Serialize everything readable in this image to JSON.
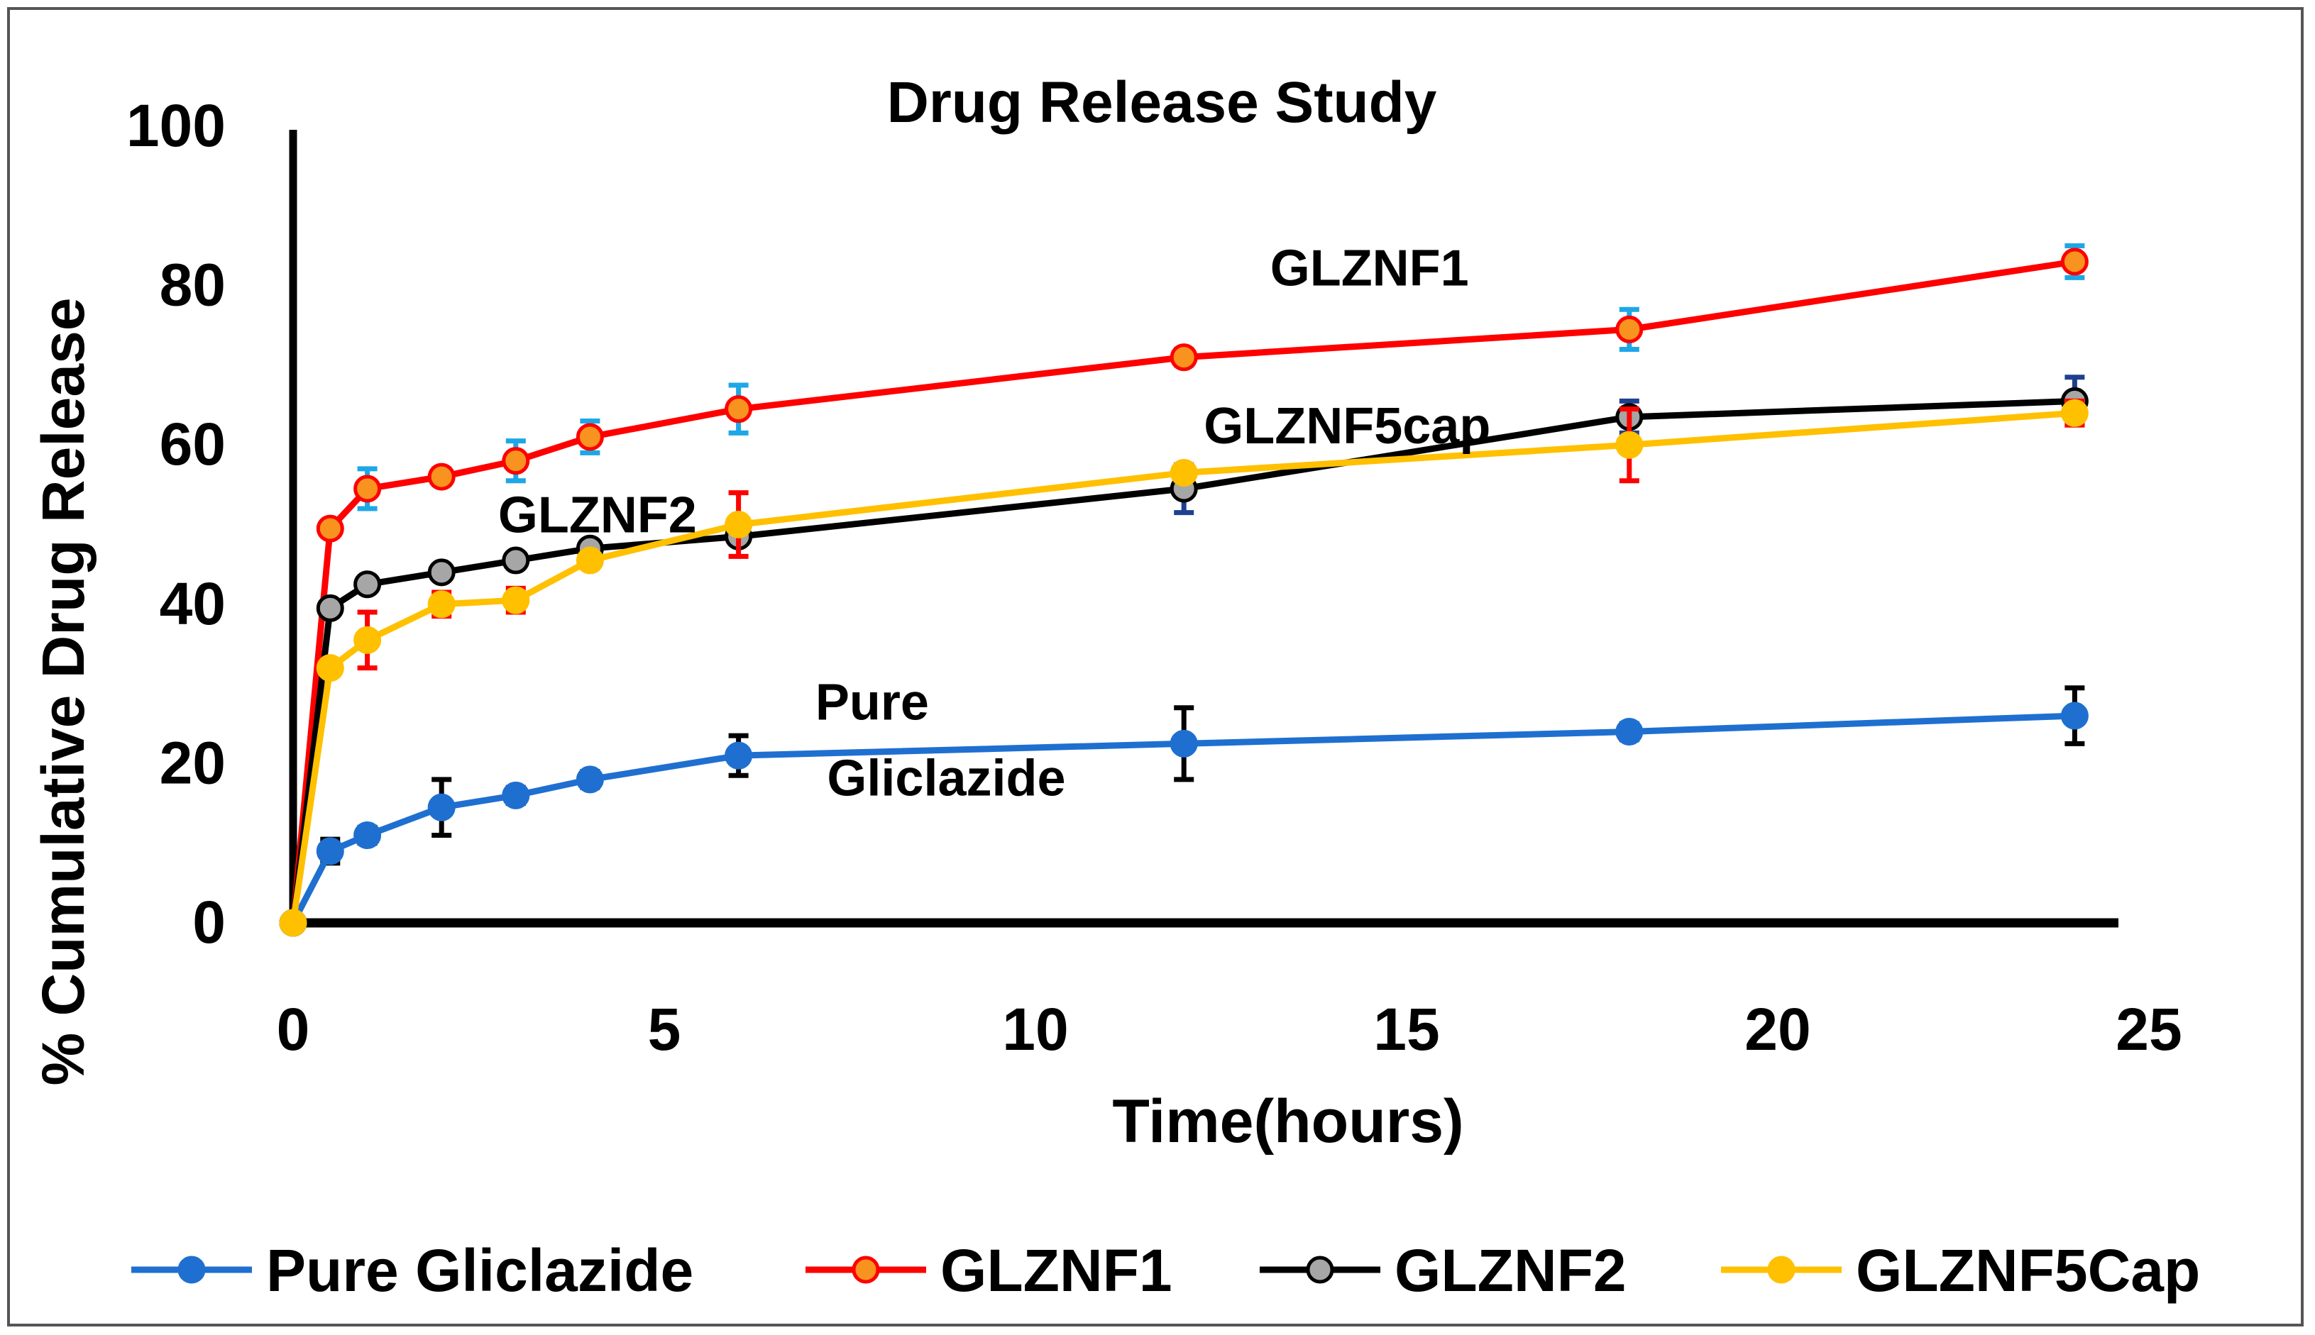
{
  "chart_data": {
    "type": "line",
    "title": "Drug Release Study",
    "xlabel": "Time(hours)",
    "ylabel": "% Cumulative Drug Release",
    "xlim": [
      0,
      25
    ],
    "ylim": [
      0,
      100
    ],
    "xticks": [
      0,
      5,
      10,
      15,
      20,
      25
    ],
    "yticks": [
      0,
      20,
      40,
      60,
      80,
      100
    ],
    "grid": false,
    "legend": "bottom",
    "series": [
      {
        "name": "Pure Gliclazide",
        "color": "#1F6FD0",
        "error_color": "#000000",
        "marker_fill": "#1F6FD0",
        "x": [
          0,
          0.5,
          1,
          2,
          3,
          4,
          6,
          12,
          18,
          24
        ],
        "values": [
          0,
          9,
          11,
          14.5,
          16,
          18,
          21,
          22.5,
          24,
          26
        ],
        "errors": [
          0,
          1.5,
          1,
          3.5,
          1,
          1,
          2.5,
          4.5,
          1,
          3.5
        ]
      },
      {
        "name": "GLZNF1",
        "color": "#FF0000",
        "error_color": "#1EA7E6",
        "marker_fill": "#F7931E",
        "x": [
          0,
          0.5,
          1,
          2,
          3,
          4,
          6,
          12,
          18,
          24
        ],
        "values": [
          0,
          49.5,
          54.5,
          56,
          58,
          61,
          64.5,
          71,
          74.5,
          83
        ],
        "errors": [
          0,
          0,
          2.5,
          1,
          2.5,
          2,
          3,
          1,
          2.5,
          2
        ]
      },
      {
        "name": "GLZNF2",
        "color": "#000000",
        "error_color": "#1F3F8F",
        "marker_fill": "#A6A6A6",
        "x": [
          0,
          0.5,
          1,
          2,
          3,
          4,
          6,
          12,
          18,
          24
        ],
        "values": [
          0,
          39.5,
          42.5,
          44,
          45.5,
          47,
          48.5,
          54.5,
          63.5,
          65.5
        ],
        "errors": [
          0,
          0,
          0,
          0,
          0,
          0,
          0,
          3,
          2,
          3
        ]
      },
      {
        "name": "GLZNF5Cap",
        "color": "#FFC000",
        "error_color": "#FF0000",
        "marker_fill": "#FFC000",
        "x": [
          0,
          0.5,
          1,
          2,
          3,
          4,
          6,
          12,
          18,
          24
        ],
        "values": [
          0,
          32,
          35.5,
          40,
          40.5,
          45.5,
          50,
          56.5,
          60,
          64
        ],
        "errors": [
          0,
          0,
          3.5,
          1.5,
          1.5,
          0,
          4,
          0,
          4.5,
          1.5
        ]
      }
    ],
    "annotations": [
      {
        "text": "GLZNF1",
        "x": 14.5,
        "y": 80
      },
      {
        "text": "GLZNF5cap",
        "x": 14.2,
        "y": 60.2
      },
      {
        "text": "GLZNF2",
        "x": 4.1,
        "y": 49
      },
      {
        "text": "Pure",
        "x": 7.8,
        "y": 25.5
      },
      {
        "text": "Gliclazide",
        "x": 8.8,
        "y": 16
      }
    ]
  }
}
